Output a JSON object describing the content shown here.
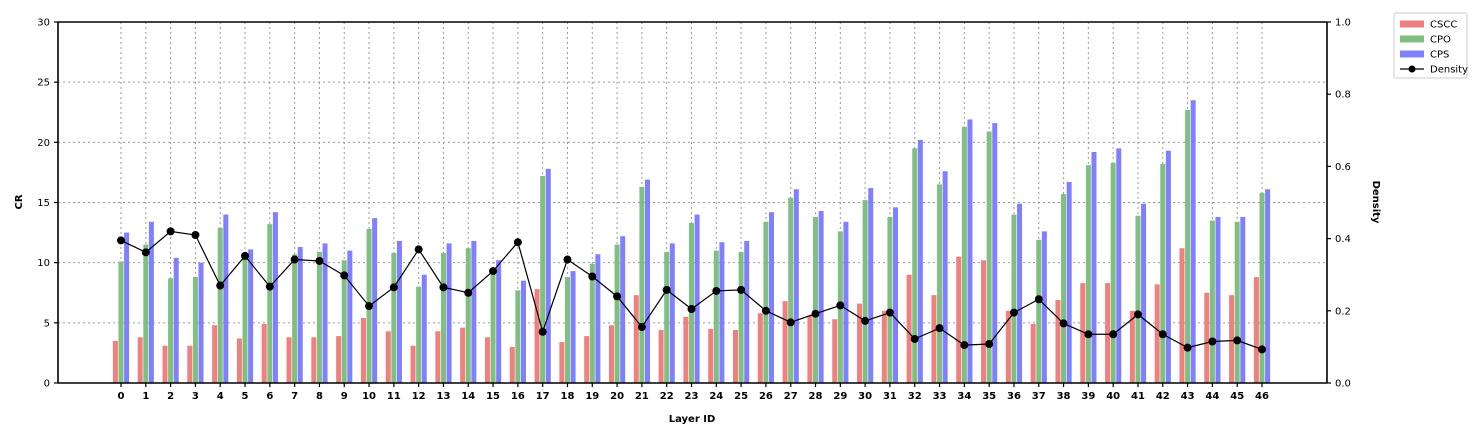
{
  "chart_data": {
    "type": "bar",
    "xlabel": "Layer ID",
    "ylabel": "CR",
    "y2label": "Density",
    "ylim": [
      0,
      30
    ],
    "y2lim": [
      0,
      1.0
    ],
    "yticks": [
      "0",
      "5",
      "10",
      "15",
      "20",
      "25",
      "30"
    ],
    "y2ticks": [
      "0.0",
      "0.2",
      "0.4",
      "0.6",
      "0.8",
      "1.0"
    ],
    "grid": true,
    "legend_position": "outside-top-right",
    "categories": [
      "0",
      "1",
      "2",
      "3",
      "4",
      "5",
      "6",
      "7",
      "8",
      "9",
      "10",
      "11",
      "12",
      "13",
      "14",
      "15",
      "16",
      "17",
      "18",
      "19",
      "20",
      "21",
      "22",
      "23",
      "24",
      "25",
      "26",
      "27",
      "28",
      "29",
      "30",
      "31",
      "32",
      "33",
      "34",
      "35",
      "36",
      "37",
      "38",
      "39",
      "40",
      "41",
      "42",
      "43",
      "44",
      "45",
      "46"
    ],
    "series": [
      {
        "name": "CSCC",
        "color": "#f08080",
        "axis": "left",
        "values": [
          3.5,
          3.8,
          3.1,
          3.1,
          4.8,
          3.7,
          4.9,
          3.8,
          3.8,
          3.9,
          5.4,
          4.3,
          3.1,
          4.3,
          4.6,
          3.8,
          3.0,
          7.8,
          3.4,
          3.9,
          4.8,
          7.3,
          4.4,
          5.5,
          4.5,
          4.4,
          5.8,
          6.8,
          5.6,
          5.3,
          6.6,
          6.0,
          9.0,
          7.3,
          10.5,
          10.2,
          6.0,
          4.9,
          6.9,
          8.3,
          8.3,
          6.0,
          8.2,
          11.2,
          7.5,
          7.3,
          8.8
        ]
      },
      {
        "name": "CPO",
        "color": "#7fbf7f",
        "axis": "left",
        "values": [
          10.1,
          11.5,
          8.7,
          8.8,
          12.9,
          10.4,
          13.2,
          10.7,
          10.9,
          10.2,
          12.8,
          10.8,
          8.0,
          10.8,
          11.2,
          9.3,
          7.7,
          17.2,
          8.8,
          9.9,
          11.5,
          16.3,
          10.9,
          13.3,
          11.0,
          10.9,
          13.4,
          15.4,
          13.8,
          12.6,
          15.2,
          13.8,
          19.5,
          16.5,
          21.3,
          20.9,
          14.0,
          11.9,
          15.7,
          18.1,
          18.3,
          13.9,
          18.2,
          22.7,
          13.5,
          13.4,
          15.8
        ]
      },
      {
        "name": "CPS",
        "color": "#8080ff",
        "axis": "left",
        "values": [
          12.5,
          13.4,
          10.4,
          10.0,
          14.0,
          11.1,
          14.2,
          11.3,
          11.6,
          11.0,
          13.7,
          11.8,
          9.0,
          11.6,
          11.8,
          10.2,
          8.5,
          17.8,
          9.3,
          10.7,
          12.2,
          16.9,
          11.6,
          14.0,
          11.7,
          11.8,
          14.2,
          16.1,
          14.3,
          13.4,
          16.2,
          14.6,
          20.2,
          17.6,
          21.9,
          21.6,
          14.9,
          12.6,
          16.7,
          19.2,
          19.5,
          14.9,
          19.3,
          23.5,
          13.8,
          13.8,
          16.1
        ]
      },
      {
        "name": "Density",
        "color": "#000000",
        "axis": "right",
        "line": true,
        "values": [
          0.395,
          0.362,
          0.42,
          0.41,
          0.27,
          0.352,
          0.267,
          0.342,
          0.338,
          0.298,
          0.213,
          0.265,
          0.37,
          0.265,
          0.25,
          0.31,
          0.39,
          0.142,
          0.342,
          0.295,
          0.24,
          0.155,
          0.258,
          0.205,
          0.255,
          0.258,
          0.2,
          0.168,
          0.192,
          0.215,
          0.172,
          0.195,
          0.122,
          0.152,
          0.105,
          0.108,
          0.195,
          0.232,
          0.165,
          0.135,
          0.135,
          0.19,
          0.135,
          0.098,
          0.115,
          0.118,
          0.093
        ]
      }
    ]
  }
}
